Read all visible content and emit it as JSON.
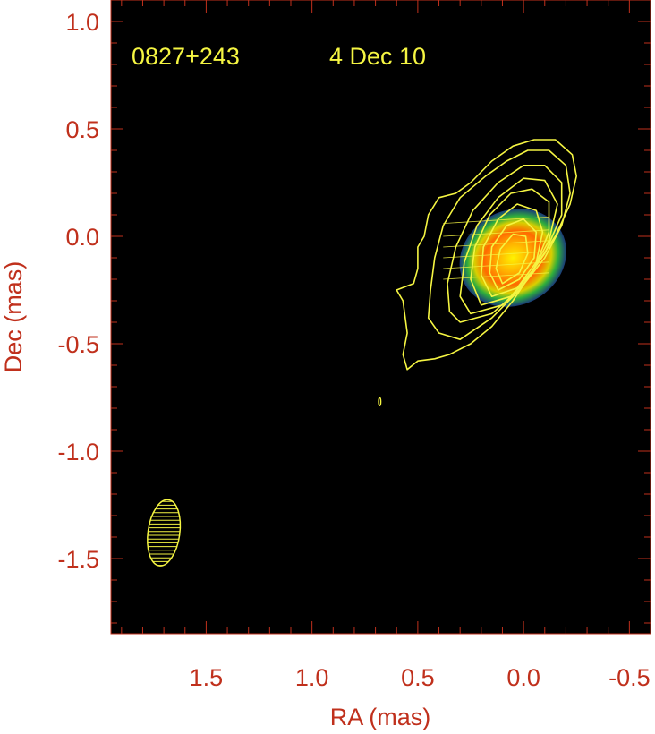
{
  "chart_data": {
    "type": "contour",
    "title": "",
    "source_name": "0827+243",
    "epoch": "4 Dec 10",
    "xlabel": "RA (mas)",
    "ylabel": "Dec (mas)",
    "xlim": [
      1.95,
      -0.6
    ],
    "ylim": [
      -1.85,
      1.1
    ],
    "x_axis_reversed": true,
    "x_ticks": [
      1.5,
      1.0,
      0.5,
      0.0,
      -0.5
    ],
    "x_tick_labels": [
      "1.5",
      "1.0",
      "0.5",
      "0.0",
      "-0.5"
    ],
    "y_ticks": [
      1.0,
      0.5,
      0.0,
      -0.5,
      -1.0,
      -1.5
    ],
    "y_tick_labels": [
      "1.0",
      "0.5",
      "0.0",
      "-0.5",
      "-1.0",
      "-1.5"
    ],
    "grid": false,
    "colors": {
      "background": "#000000",
      "axes": "#c0301c",
      "contours": "#f5f542",
      "annotation": "#f5f542"
    },
    "core": {
      "ra": 0.05,
      "dec": -0.1
    },
    "beam": {
      "ra": 1.7,
      "dec": -1.38,
      "major": 0.31,
      "minor": 0.15,
      "pa_deg": 8
    },
    "contours": [
      {
        "level": 1,
        "points": [
          [
            0.55,
            -0.62
          ],
          [
            0.5,
            -0.58
          ],
          [
            0.42,
            -0.57
          ],
          [
            0.35,
            -0.55
          ],
          [
            0.25,
            -0.5
          ],
          [
            0.15,
            -0.42
          ],
          [
            0.05,
            -0.3
          ],
          [
            -0.05,
            -0.15
          ],
          [
            -0.15,
            0.0
          ],
          [
            -0.22,
            0.15
          ],
          [
            -0.25,
            0.28
          ],
          [
            -0.23,
            0.38
          ],
          [
            -0.15,
            0.45
          ],
          [
            -0.05,
            0.45
          ],
          [
            0.05,
            0.42
          ],
          [
            0.15,
            0.35
          ],
          [
            0.25,
            0.25
          ],
          [
            0.32,
            0.2
          ],
          [
            0.4,
            0.18
          ],
          [
            0.45,
            0.1
          ],
          [
            0.47,
            0.0
          ],
          [
            0.5,
            -0.05
          ],
          [
            0.5,
            -0.15
          ],
          [
            0.52,
            -0.22
          ],
          [
            0.6,
            -0.25
          ],
          [
            0.57,
            -0.3
          ],
          [
            0.55,
            -0.45
          ],
          [
            0.57,
            -0.55
          ],
          [
            0.55,
            -0.62
          ]
        ]
      },
      {
        "level": 2,
        "points": [
          [
            0.4,
            -0.45
          ],
          [
            0.3,
            -0.48
          ],
          [
            0.15,
            -0.38
          ],
          [
            0.02,
            -0.25
          ],
          [
            -0.1,
            -0.1
          ],
          [
            -0.18,
            0.05
          ],
          [
            -0.22,
            0.2
          ],
          [
            -0.2,
            0.33
          ],
          [
            -0.12,
            0.4
          ],
          [
            -0.02,
            0.4
          ],
          [
            0.08,
            0.35
          ],
          [
            0.18,
            0.28
          ],
          [
            0.3,
            0.18
          ],
          [
            0.38,
            0.05
          ],
          [
            0.42,
            -0.1
          ],
          [
            0.44,
            -0.25
          ],
          [
            0.45,
            -0.38
          ],
          [
            0.4,
            -0.45
          ]
        ]
      },
      {
        "level": 3,
        "points": [
          [
            0.3,
            -0.4
          ],
          [
            0.15,
            -0.36
          ],
          [
            0.02,
            -0.25
          ],
          [
            -0.1,
            -0.08
          ],
          [
            -0.18,
            0.1
          ],
          [
            -0.18,
            0.25
          ],
          [
            -0.1,
            0.33
          ],
          [
            0.0,
            0.33
          ],
          [
            0.12,
            0.25
          ],
          [
            0.24,
            0.12
          ],
          [
            0.32,
            -0.05
          ],
          [
            0.36,
            -0.22
          ],
          [
            0.35,
            -0.35
          ],
          [
            0.3,
            -0.4
          ]
        ]
      },
      {
        "level": 4,
        "points": [
          [
            0.25,
            -0.36
          ],
          [
            0.1,
            -0.32
          ],
          [
            -0.02,
            -0.2
          ],
          [
            -0.12,
            -0.02
          ],
          [
            -0.16,
            0.15
          ],
          [
            -0.1,
            0.26
          ],
          [
            0.0,
            0.27
          ],
          [
            0.12,
            0.18
          ],
          [
            0.22,
            0.05
          ],
          [
            0.28,
            -0.12
          ],
          [
            0.3,
            -0.28
          ],
          [
            0.25,
            -0.36
          ]
        ]
      },
      {
        "level": 5,
        "points": [
          [
            0.2,
            -0.32
          ],
          [
            0.06,
            -0.28
          ],
          [
            -0.05,
            -0.15
          ],
          [
            -0.12,
            0.02
          ],
          [
            -0.12,
            0.16
          ],
          [
            -0.04,
            0.22
          ],
          [
            0.06,
            0.2
          ],
          [
            0.16,
            0.1
          ],
          [
            0.23,
            -0.05
          ],
          [
            0.25,
            -0.2
          ],
          [
            0.2,
            -0.32
          ]
        ]
      },
      {
        "level": 6,
        "points": [
          [
            0.15,
            -0.28
          ],
          [
            0.03,
            -0.24
          ],
          [
            -0.06,
            -0.12
          ],
          [
            -0.09,
            0.02
          ],
          [
            -0.06,
            0.12
          ],
          [
            0.03,
            0.15
          ],
          [
            0.12,
            0.08
          ],
          [
            0.19,
            -0.05
          ],
          [
            0.2,
            -0.18
          ],
          [
            0.15,
            -0.28
          ]
        ]
      },
      {
        "level": 7,
        "points": [
          [
            0.12,
            -0.25
          ],
          [
            0.02,
            -0.2
          ],
          [
            -0.05,
            -0.1
          ],
          [
            -0.06,
            0.02
          ],
          [
            0.0,
            0.08
          ],
          [
            0.08,
            0.05
          ],
          [
            0.15,
            -0.05
          ],
          [
            0.16,
            -0.17
          ],
          [
            0.12,
            -0.25
          ]
        ]
      },
      {
        "level": 8,
        "points": [
          [
            0.1,
            -0.22
          ],
          [
            0.02,
            -0.17
          ],
          [
            -0.02,
            -0.08
          ],
          [
            -0.01,
            0.0
          ],
          [
            0.05,
            0.01
          ],
          [
            0.11,
            -0.06
          ],
          [
            0.13,
            -0.15
          ],
          [
            0.1,
            -0.22
          ]
        ]
      }
    ],
    "isolated_component": {
      "ra": 0.68,
      "dec": -0.77
    }
  }
}
